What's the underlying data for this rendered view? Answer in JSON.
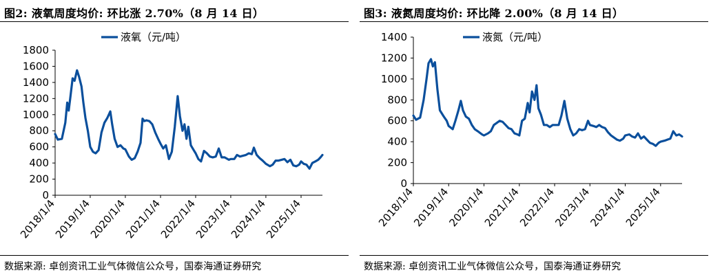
{
  "panels": [
    {
      "title": "图2:  液氧周度均价:  环比涨 2.70%（8 月 14 日）",
      "source": "数据来源:  卓创资讯工业气体微信公众号，国泰海通证券研究"
    },
    {
      "title": "图3:  液氮周度均价:  环比降 2.00%（8 月 14 日）",
      "source": "数据来源:  卓创资讯工业气体微信公众号，国泰海通证券研究"
    }
  ],
  "colors": {
    "line": "#0b4f9c",
    "axis": "#000000"
  },
  "chart_data": [
    {
      "type": "line",
      "title": "",
      "legend_position": "top-center",
      "grid": false,
      "xlabel": "",
      "ylabel": "",
      "ylim": [
        0,
        1800
      ],
      "yticks": [
        0,
        200,
        400,
        600,
        800,
        1000,
        1200,
        1400,
        1600,
        1800
      ],
      "xlim": [
        "2018-01-04",
        "2025-08-14"
      ],
      "xticks": [
        "2018/1/4",
        "2019/1/4",
        "2020/1/4",
        "2021/1/4",
        "2022/1/4",
        "2023/1/4",
        "2024/1/4",
        "2025/1/4"
      ],
      "series": [
        {
          "name": "液氧（元/吨）",
          "points": [
            [
              "2018-01-04",
              760
            ],
            [
              "2018-02-01",
              690
            ],
            [
              "2018-03-15",
              700
            ],
            [
              "2018-04-20",
              900
            ],
            [
              "2018-05-10",
              1150
            ],
            [
              "2018-05-25",
              1050
            ],
            [
              "2018-06-10",
              1200
            ],
            [
              "2018-07-05",
              1450
            ],
            [
              "2018-07-25",
              1420
            ],
            [
              "2018-08-20",
              1550
            ],
            [
              "2018-09-10",
              1470
            ],
            [
              "2018-10-05",
              1350
            ],
            [
              "2018-10-25",
              1150
            ],
            [
              "2018-11-15",
              960
            ],
            [
              "2018-12-10",
              800
            ],
            [
              "2019-01-04",
              600
            ],
            [
              "2019-02-01",
              540
            ],
            [
              "2019-03-01",
              520
            ],
            [
              "2019-04-01",
              560
            ],
            [
              "2019-05-01",
              780
            ],
            [
              "2019-06-01",
              900
            ],
            [
              "2019-07-01",
              960
            ],
            [
              "2019-08-01",
              1040
            ],
            [
              "2019-08-20",
              880
            ],
            [
              "2019-09-15",
              700
            ],
            [
              "2019-10-15",
              600
            ],
            [
              "2019-11-15",
              620
            ],
            [
              "2019-12-15",
              580
            ],
            [
              "2020-01-04",
              570
            ],
            [
              "2020-02-10",
              480
            ],
            [
              "2020-03-10",
              440
            ],
            [
              "2020-04-10",
              460
            ],
            [
              "2020-05-10",
              540
            ],
            [
              "2020-06-10",
              650
            ],
            [
              "2020-07-01",
              950
            ],
            [
              "2020-07-20",
              920
            ],
            [
              "2020-08-10",
              930
            ],
            [
              "2020-09-10",
              920
            ],
            [
              "2020-10-10",
              880
            ],
            [
              "2020-11-10",
              780
            ],
            [
              "2020-12-10",
              700
            ],
            [
              "2021-01-04",
              640
            ],
            [
              "2021-02-01",
              580
            ],
            [
              "2021-03-01",
              620
            ],
            [
              "2021-04-01",
              450
            ],
            [
              "2021-05-01",
              540
            ],
            [
              "2021-06-01",
              850
            ],
            [
              "2021-07-01",
              1230
            ],
            [
              "2021-07-25",
              980
            ],
            [
              "2021-08-20",
              800
            ],
            [
              "2021-09-10",
              880
            ],
            [
              "2021-10-01",
              700
            ],
            [
              "2021-10-20",
              850
            ],
            [
              "2021-11-15",
              620
            ],
            [
              "2021-12-15",
              560
            ],
            [
              "2022-01-04",
              520
            ],
            [
              "2022-02-01",
              450
            ],
            [
              "2022-03-01",
              420
            ],
            [
              "2022-04-01",
              550
            ],
            [
              "2022-05-01",
              520
            ],
            [
              "2022-06-01",
              480
            ],
            [
              "2022-07-01",
              470
            ],
            [
              "2022-08-01",
              480
            ],
            [
              "2022-09-01",
              580
            ],
            [
              "2022-10-01",
              470
            ],
            [
              "2022-11-01",
              470
            ],
            [
              "2022-12-15",
              440
            ],
            [
              "2023-01-04",
              450
            ],
            [
              "2023-02-10",
              450
            ],
            [
              "2023-03-10",
              500
            ],
            [
              "2023-04-10",
              480
            ],
            [
              "2023-05-10",
              490
            ],
            [
              "2023-06-10",
              500
            ],
            [
              "2023-07-10",
              520
            ],
            [
              "2023-08-10",
              510
            ],
            [
              "2023-09-01",
              590
            ],
            [
              "2023-10-01",
              500
            ],
            [
              "2023-11-01",
              460
            ],
            [
              "2023-12-01",
              430
            ],
            [
              "2024-01-04",
              390
            ],
            [
              "2024-02-15",
              360
            ],
            [
              "2024-03-15",
              380
            ],
            [
              "2024-04-15",
              430
            ],
            [
              "2024-05-15",
              430
            ],
            [
              "2024-06-15",
              440
            ],
            [
              "2024-07-15",
              450
            ],
            [
              "2024-08-15",
              410
            ],
            [
              "2024-09-15",
              440
            ],
            [
              "2024-10-15",
              370
            ],
            [
              "2024-11-15",
              360
            ],
            [
              "2024-12-15",
              380
            ],
            [
              "2025-01-04",
              420
            ],
            [
              "2025-02-01",
              390
            ],
            [
              "2025-03-01",
              380
            ],
            [
              "2025-04-01",
              330
            ],
            [
              "2025-05-01",
              400
            ],
            [
              "2025-06-01",
              420
            ],
            [
              "2025-07-01",
              440
            ],
            [
              "2025-07-25",
              470
            ],
            [
              "2025-08-14",
              500
            ]
          ]
        }
      ]
    },
    {
      "type": "line",
      "title": "",
      "legend_position": "top-center",
      "grid": false,
      "xlabel": "",
      "ylabel": "",
      "ylim": [
        0,
        1400
      ],
      "yticks": [
        0,
        200,
        400,
        600,
        800,
        1000,
        1200,
        1400
      ],
      "xlim": [
        "2018-01-04",
        "2025-08-14"
      ],
      "xticks": [
        "2018/1/4",
        "2019/1/4",
        "2020/1/4",
        "2021/1/4",
        "2022/1/4",
        "2023/1/4",
        "2024/1/4",
        "2025/1/4"
      ],
      "series": [
        {
          "name": "液氮（元/吨）",
          "points": [
            [
              "2018-01-04",
              650
            ],
            [
              "2018-02-01",
              610
            ],
            [
              "2018-03-15",
              630
            ],
            [
              "2018-04-20",
              800
            ],
            [
              "2018-05-20",
              1000
            ],
            [
              "2018-06-10",
              1150
            ],
            [
              "2018-07-05",
              1190
            ],
            [
              "2018-07-25",
              1120
            ],
            [
              "2018-08-15",
              1160
            ],
            [
              "2018-09-10",
              900
            ],
            [
              "2018-10-05",
              700
            ],
            [
              "2018-11-15",
              640
            ],
            [
              "2018-12-15",
              600
            ],
            [
              "2019-01-04",
              550
            ],
            [
              "2019-02-15",
              520
            ],
            [
              "2019-03-15",
              600
            ],
            [
              "2019-04-15",
              700
            ],
            [
              "2019-05-10",
              790
            ],
            [
              "2019-06-01",
              700
            ],
            [
              "2019-07-01",
              640
            ],
            [
              "2019-08-01",
              620
            ],
            [
              "2019-09-01",
              560
            ],
            [
              "2019-10-01",
              520
            ],
            [
              "2019-11-01",
              500
            ],
            [
              "2019-12-15",
              470
            ],
            [
              "2020-01-04",
              460
            ],
            [
              "2020-02-15",
              480
            ],
            [
              "2020-03-15",
              500
            ],
            [
              "2020-04-15",
              560
            ],
            [
              "2020-05-15",
              580
            ],
            [
              "2020-06-15",
              600
            ],
            [
              "2020-07-15",
              590
            ],
            [
              "2020-08-15",
              560
            ],
            [
              "2020-09-15",
              530
            ],
            [
              "2020-10-15",
              520
            ],
            [
              "2020-11-15",
              480
            ],
            [
              "2020-12-15",
              470
            ],
            [
              "2021-01-04",
              460
            ],
            [
              "2021-02-01",
              600
            ],
            [
              "2021-03-01",
              620
            ],
            [
              "2021-04-01",
              770
            ],
            [
              "2021-04-20",
              680
            ],
            [
              "2021-05-15",
              880
            ],
            [
              "2021-06-10",
              800
            ],
            [
              "2021-07-01",
              940
            ],
            [
              "2021-07-20",
              720
            ],
            [
              "2021-08-15",
              660
            ],
            [
              "2021-09-15",
              560
            ],
            [
              "2021-10-15",
              560
            ],
            [
              "2021-11-15",
              540
            ],
            [
              "2021-12-15",
              560
            ],
            [
              "2022-01-04",
              560
            ],
            [
              "2022-02-15",
              560
            ],
            [
              "2022-03-15",
              650
            ],
            [
              "2022-04-15",
              790
            ],
            [
              "2022-05-15",
              620
            ],
            [
              "2022-06-15",
              520
            ],
            [
              "2022-07-15",
              460
            ],
            [
              "2022-08-15",
              480
            ],
            [
              "2022-09-15",
              520
            ],
            [
              "2022-10-15",
              510
            ],
            [
              "2022-11-15",
              520
            ],
            [
              "2022-12-15",
              600
            ],
            [
              "2023-01-04",
              560
            ],
            [
              "2023-02-10",
              550
            ],
            [
              "2023-03-10",
              540
            ],
            [
              "2023-04-10",
              560
            ],
            [
              "2023-05-10",
              540
            ],
            [
              "2023-06-10",
              530
            ],
            [
              "2023-07-10",
              490
            ],
            [
              "2023-08-10",
              460
            ],
            [
              "2023-09-10",
              440
            ],
            [
              "2023-10-10",
              420
            ],
            [
              "2023-11-10",
              410
            ],
            [
              "2023-12-15",
              430
            ],
            [
              "2024-01-04",
              460
            ],
            [
              "2024-02-15",
              470
            ],
            [
              "2024-03-15",
              450
            ],
            [
              "2024-04-15",
              440
            ],
            [
              "2024-05-15",
              480
            ],
            [
              "2024-06-15",
              430
            ],
            [
              "2024-07-15",
              450
            ],
            [
              "2024-08-15",
              420
            ],
            [
              "2024-09-15",
              390
            ],
            [
              "2024-10-15",
              380
            ],
            [
              "2024-11-15",
              360
            ],
            [
              "2024-12-15",
              390
            ],
            [
              "2025-01-04",
              400
            ],
            [
              "2025-02-15",
              410
            ],
            [
              "2025-03-15",
              420
            ],
            [
              "2025-04-15",
              430
            ],
            [
              "2025-05-15",
              500
            ],
            [
              "2025-06-15",
              460
            ],
            [
              "2025-07-15",
              470
            ],
            [
              "2025-08-14",
              450
            ]
          ]
        }
      ]
    }
  ]
}
